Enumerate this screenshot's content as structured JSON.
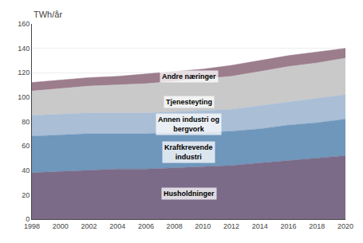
{
  "chart_data": {
    "type": "area",
    "stacked": true,
    "ylabel": "TWh/år",
    "x": [
      1998,
      2000,
      2002,
      2004,
      2006,
      2008,
      2010,
      2012,
      2014,
      2016,
      2018,
      2020
    ],
    "series": [
      {
        "name": "Husholdninger",
        "color": "#7b6b88",
        "values": [
          38,
          39,
          40,
          41,
          41,
          42,
          43,
          44,
          46,
          48,
          50,
          52
        ]
      },
      {
        "name": "Kraftkrevende\nindustri",
        "color": "#6f97bc",
        "values": [
          30,
          30,
          30,
          29,
          29,
          29,
          28,
          28,
          28,
          29,
          29,
          30
        ]
      },
      {
        "name": "Annen industri og\nbergvork",
        "color": "#aabfd6",
        "values": [
          17,
          17,
          17,
          17,
          17,
          17,
          18,
          18,
          19,
          19,
          20,
          20
        ]
      },
      {
        "name": "Tjenesteyting",
        "color": "#c9c9c9",
        "values": [
          20,
          21,
          22,
          23,
          24,
          25,
          26,
          27,
          28,
          29,
          29,
          30
        ]
      },
      {
        "name": "Andre næringer",
        "color": "#9c7d8c",
        "values": [
          7,
          7,
          7,
          7,
          8,
          8,
          8,
          9,
          9,
          9,
          9,
          8
        ]
      }
    ],
    "annotations": [
      {
        "text": "Husholdninger",
        "x": 2009,
        "y": 21
      },
      {
        "text": "Kraftkrevende\nindustri",
        "x": 2009,
        "y": 55
      },
      {
        "text": "Annen industri og\nbergvork",
        "x": 2009,
        "y": 78
      },
      {
        "text": "Tjenesteyting",
        "x": 2009,
        "y": 96
      },
      {
        "text": "Andre næringer",
        "x": 2009,
        "y": 117
      }
    ],
    "xlim": [
      1998,
      2020
    ],
    "xticks": [
      1998,
      2000,
      2002,
      2004,
      2006,
      2008,
      2010,
      2012,
      2014,
      2016,
      2018,
      2020
    ],
    "ylim": [
      0,
      160
    ],
    "yticks": [
      0,
      20,
      40,
      60,
      80,
      100,
      120,
      140,
      160
    ],
    "grid": "y"
  }
}
